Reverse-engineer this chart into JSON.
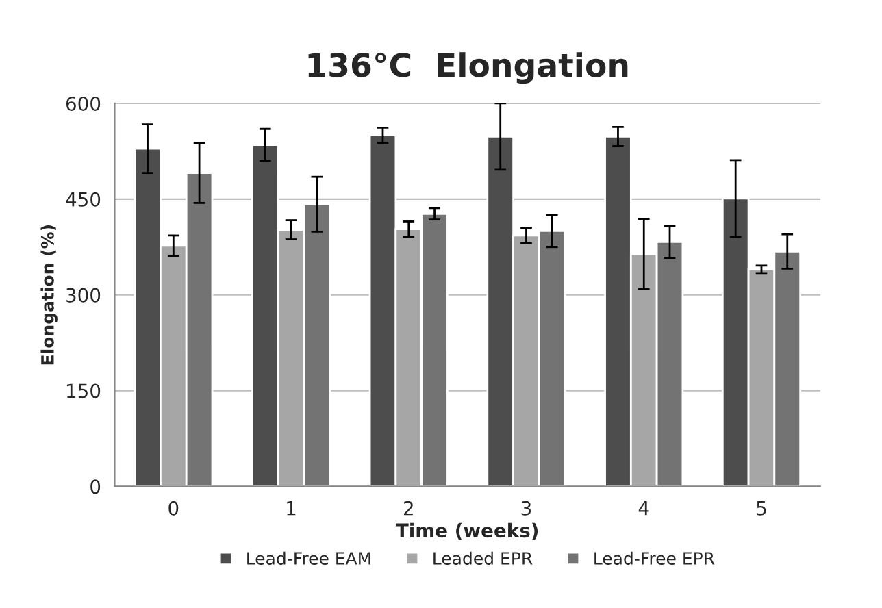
{
  "chart_data": {
    "type": "bar",
    "title": "136°C  Elongation",
    "xlabel": "Time (weeks)",
    "ylabel": "Elongation (%)",
    "categories": [
      "0",
      "1",
      "2",
      "3",
      "4",
      "5"
    ],
    "series": [
      {
        "name": "Lead-Free EAM",
        "color": "#4d4d4d",
        "values": [
          529,
          535,
          550,
          548,
          548,
          451
        ],
        "errors": [
          38,
          25,
          12,
          52,
          15,
          60
        ]
      },
      {
        "name": "Leaded EPR",
        "color": "#a6a6a6",
        "values": [
          377,
          402,
          403,
          393,
          364,
          340
        ],
        "errors": [
          16,
          15,
          12,
          12,
          55,
          6
        ]
      },
      {
        "name": "Lead-Free EPR",
        "color": "#737373",
        "values": [
          491,
          442,
          427,
          400,
          383,
          368
        ],
        "errors": [
          47,
          43,
          9,
          25,
          25,
          27
        ]
      }
    ],
    "ylim": [
      0,
      600
    ],
    "yticks": [
      0,
      150,
      300,
      450,
      600
    ],
    "grid": "y",
    "legend": "bottom"
  }
}
